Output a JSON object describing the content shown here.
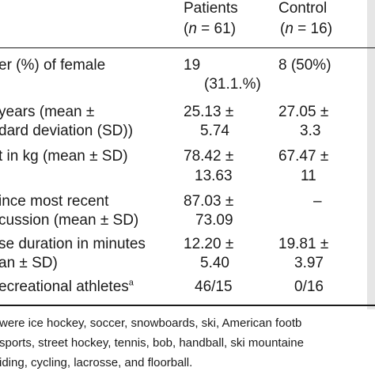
{
  "header": {
    "patients_label": "Patients",
    "patients_n": "(n = 61)",
    "control_label": "Control",
    "control_n": "(n = 16)"
  },
  "rows": [
    {
      "label": [
        "er (%) of female"
      ],
      "patients": [
        "19",
        "(31.1.%)"
      ],
      "control": [
        "8 (50%)"
      ]
    },
    {
      "label": [
        " years (mean ±",
        "dard deviation (SD))"
      ],
      "patients": [
        "25.13 ±",
        "5.74"
      ],
      "control": [
        "27.05 ±",
        "3.3"
      ]
    },
    {
      "label": [
        "t in kg (mean ± SD)"
      ],
      "patients": [
        "78.42 ±",
        "13.63"
      ],
      "control": [
        "67.47 ±",
        "11"
      ]
    },
    {
      "label": [
        "ince most recent",
        "cussion (mean ± SD)"
      ],
      "patients": [
        "87.03 ±",
        "73.09"
      ],
      "control": [
        "–"
      ]
    },
    {
      "label": [
        "se duration in minutes",
        "an ± SD)"
      ],
      "patients": [
        "12.20 ±",
        "5.40"
      ],
      "control": [
        "19.81 ±",
        "3.97"
      ]
    },
    {
      "label": [
        "ecreational athletes",
        "a"
      ],
      "patients": [
        "46/15"
      ],
      "control": [
        "0/16"
      ]
    }
  ],
  "footnote": {
    "line1": "were ice hockey, soccer, snowboards, ski, American footb",
    "line2": "sports, street hockey, tennis, bob, handball, ski mountaine",
    "line3": "iding, cycling, lacrosse, and floorball."
  },
  "colors": {
    "text": "#1a1a1a",
    "rule": "#1a1a1a",
    "edge": "#e6e6e6"
  }
}
